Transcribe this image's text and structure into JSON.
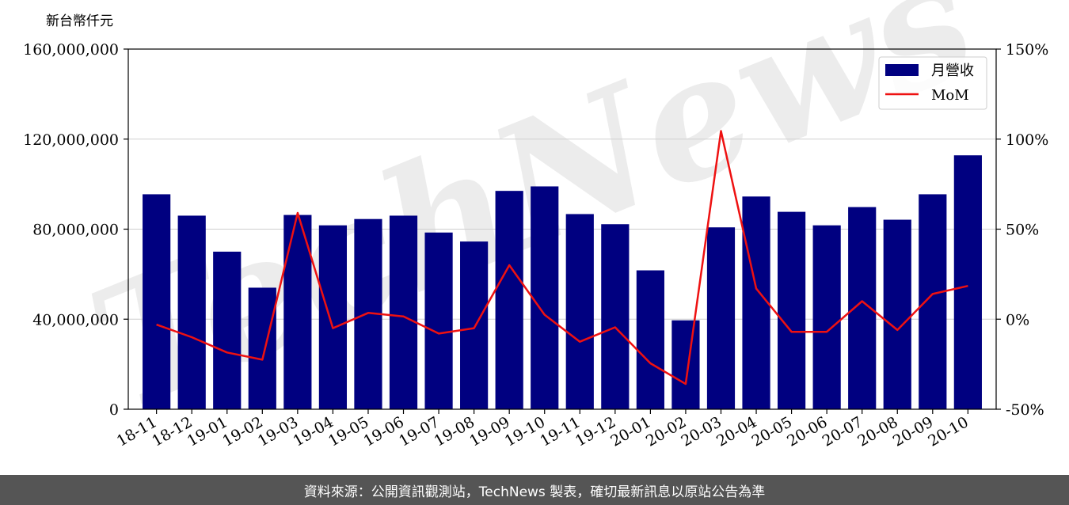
{
  "chart_data": {
    "type": "bar",
    "unit_label": "新台幣仟元",
    "categories": [
      "18-11",
      "18-12",
      "19-01",
      "19-02",
      "19-03",
      "19-04",
      "19-05",
      "19-06",
      "19-07",
      "19-08",
      "19-09",
      "19-10",
      "19-11",
      "19-12",
      "20-01",
      "20-02",
      "20-03",
      "20-04",
      "20-05",
      "20-06",
      "20-07",
      "20-08",
      "20-09",
      "20-10"
    ],
    "series": [
      {
        "name": "月營收",
        "type": "bar",
        "axis": "left",
        "color": "#000080",
        "values": [
          95500000,
          86000000,
          70000000,
          54000000,
          86300000,
          81700000,
          84500000,
          86000000,
          78500000,
          74500000,
          97000000,
          99000000,
          86700000,
          82200000,
          61700000,
          39500000,
          80800000,
          94500000,
          87700000,
          81700000,
          89800000,
          84200000,
          95500000,
          112800000
        ]
      },
      {
        "name": "MoM",
        "type": "line",
        "axis": "right",
        "color": "#ee1111",
        "values": [
          -3.0,
          -10.0,
          -18.5,
          -22.5,
          59.0,
          -5.0,
          3.5,
          1.5,
          -8.0,
          -5.0,
          30.0,
          2.5,
          -12.5,
          -4.5,
          -24.5,
          -36.0,
          104.5,
          17.0,
          -7.0,
          -7.0,
          10.0,
          -6.0,
          14.0,
          18.5
        ]
      }
    ],
    "y_left": {
      "min": 0,
      "max": 160000000,
      "ticks": [
        0,
        40000000,
        80000000,
        120000000,
        160000000
      ],
      "tick_labels": [
        "0",
        "40,000,000",
        "80,000,000",
        "120,000,000",
        "160,000,000"
      ]
    },
    "y_right": {
      "min": -50,
      "max": 150,
      "ticks": [
        -50,
        0,
        50,
        100,
        150
      ],
      "tick_labels": [
        "-50%",
        "0%",
        "50%",
        "100%",
        "150%"
      ]
    },
    "grid": true,
    "legend_position": "top-right",
    "watermark": "TechNews"
  },
  "footer": {
    "text": "資料來源：公開資訊觀測站，TechNews 製表，確切最新訊息以原站公告為準"
  }
}
